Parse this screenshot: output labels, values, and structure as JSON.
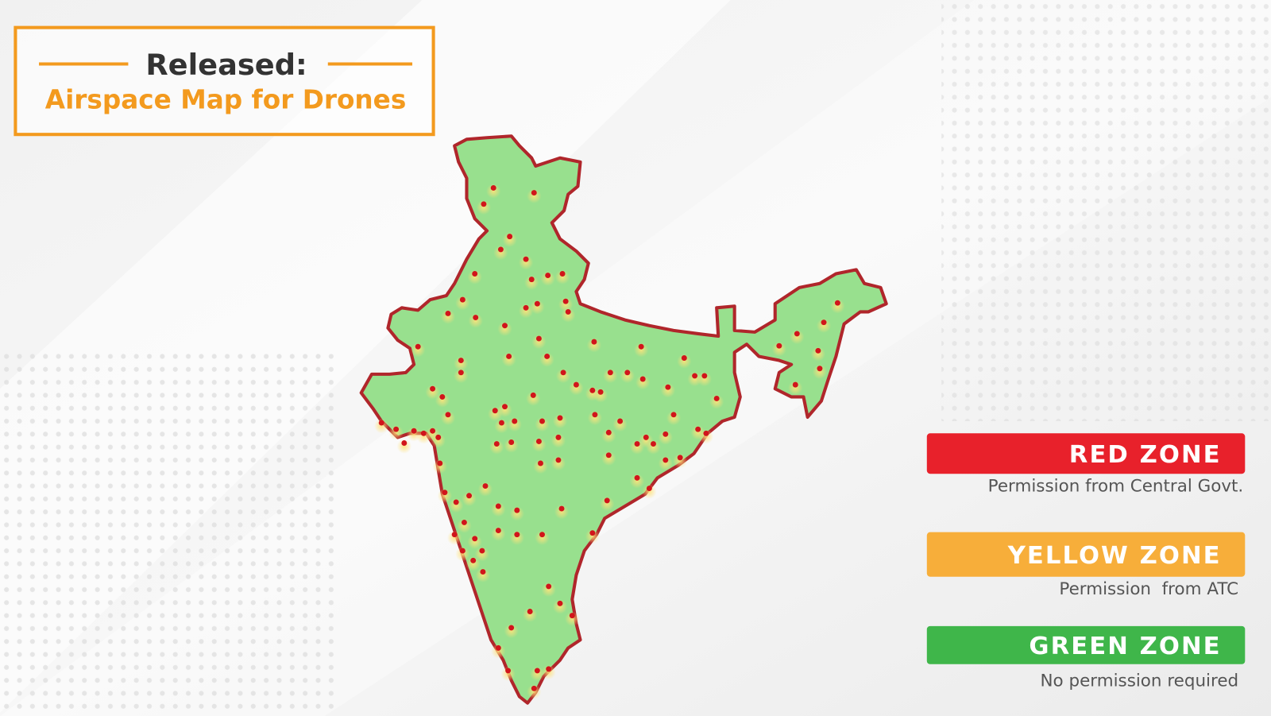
{
  "header": {
    "title": "Released:",
    "subtitle": "Airspace Map for Drones"
  },
  "legend": [
    {
      "zone": "RED ZONE",
      "description": "Permission from Central Govt.",
      "color": "#e8212b"
    },
    {
      "zone": "YELLOW ZONE",
      "description": "Permission  from ATC",
      "color": "#f7ae3a"
    },
    {
      "zone": "GREEN ZONE",
      "description": "No permission required",
      "color": "#3fb64a"
    }
  ]
}
